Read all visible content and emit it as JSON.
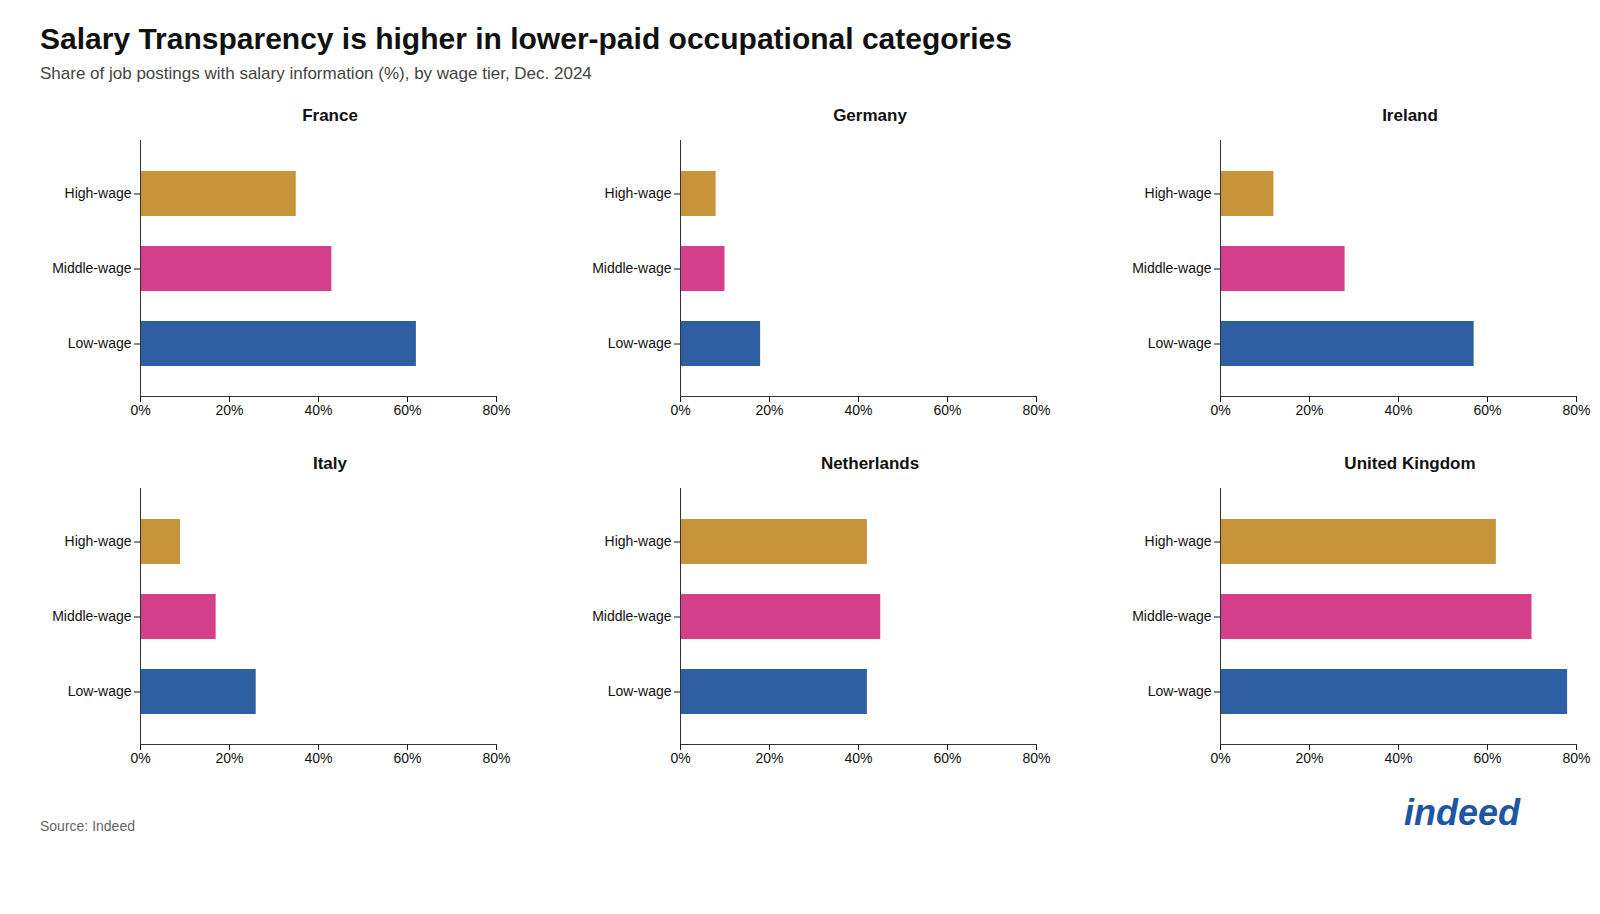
{
  "title": "Salary Transparency is higher in lower-paid occupational categories",
  "subtitle": "Share of job postings with salary information (%), by wage tier, Dec. 2024",
  "source": "Source: Indeed",
  "annotations": [
    "indeed"
  ],
  "chart_data": [
    {
      "type": "bar",
      "title": "France",
      "orientation": "horizontal",
      "categories": [
        "High-wage",
        "Middle-wage",
        "Low-wage"
      ],
      "values": [
        35,
        43,
        62
      ],
      "colors": [
        "#c8943a",
        "#d43f8c",
        "#2e5fa3"
      ],
      "xlim": [
        0,
        80
      ],
      "xticks": [
        {
          "value": 0,
          "label": "0%"
        },
        {
          "value": 20,
          "label": "20%"
        },
        {
          "value": 40,
          "label": "40%"
        },
        {
          "value": 60,
          "label": "60%"
        },
        {
          "value": 80,
          "label": "80%"
        }
      ],
      "grid": false
    },
    {
      "type": "bar",
      "title": "Germany",
      "orientation": "horizontal",
      "categories": [
        "High-wage",
        "Middle-wage",
        "Low-wage"
      ],
      "values": [
        8,
        10,
        18
      ],
      "colors": [
        "#c8943a",
        "#d43f8c",
        "#2e5fa3"
      ],
      "xlim": [
        0,
        80
      ],
      "xticks": [
        {
          "value": 0,
          "label": "0%"
        },
        {
          "value": 20,
          "label": "20%"
        },
        {
          "value": 40,
          "label": "40%"
        },
        {
          "value": 60,
          "label": "60%"
        },
        {
          "value": 80,
          "label": "80%"
        }
      ],
      "grid": false
    },
    {
      "type": "bar",
      "title": "Ireland",
      "orientation": "horizontal",
      "categories": [
        "High-wage",
        "Middle-wage",
        "Low-wage"
      ],
      "values": [
        12,
        28,
        57
      ],
      "colors": [
        "#c8943a",
        "#d43f8c",
        "#2e5fa3"
      ],
      "xlim": [
        0,
        80
      ],
      "xticks": [
        {
          "value": 0,
          "label": "0%"
        },
        {
          "value": 20,
          "label": "20%"
        },
        {
          "value": 40,
          "label": "40%"
        },
        {
          "value": 60,
          "label": "60%"
        },
        {
          "value": 80,
          "label": "80%"
        }
      ],
      "grid": false
    },
    {
      "type": "bar",
      "title": "Italy",
      "orientation": "horizontal",
      "categories": [
        "High-wage",
        "Middle-wage",
        "Low-wage"
      ],
      "values": [
        9,
        17,
        26
      ],
      "colors": [
        "#c8943a",
        "#d43f8c",
        "#2e5fa3"
      ],
      "xlim": [
        0,
        80
      ],
      "xticks": [
        {
          "value": 0,
          "label": "0%"
        },
        {
          "value": 20,
          "label": "20%"
        },
        {
          "value": 40,
          "label": "40%"
        },
        {
          "value": 60,
          "label": "60%"
        },
        {
          "value": 80,
          "label": "80%"
        }
      ],
      "grid": false
    },
    {
      "type": "bar",
      "title": "Netherlands",
      "orientation": "horizontal",
      "categories": [
        "High-wage",
        "Middle-wage",
        "Low-wage"
      ],
      "values": [
        42,
        45,
        42
      ],
      "colors": [
        "#c8943a",
        "#d43f8c",
        "#2e5fa3"
      ],
      "xlim": [
        0,
        80
      ],
      "xticks": [
        {
          "value": 0,
          "label": "0%"
        },
        {
          "value": 20,
          "label": "20%"
        },
        {
          "value": 40,
          "label": "40%"
        },
        {
          "value": 60,
          "label": "60%"
        },
        {
          "value": 80,
          "label": "80%"
        }
      ],
      "grid": false
    },
    {
      "type": "bar",
      "title": "United Kingdom",
      "orientation": "horizontal",
      "categories": [
        "High-wage",
        "Middle-wage",
        "Low-wage"
      ],
      "values": [
        62,
        70,
        78
      ],
      "colors": [
        "#c8943a",
        "#d43f8c",
        "#2e5fa3"
      ],
      "xlim": [
        0,
        80
      ],
      "xticks": [
        {
          "value": 0,
          "label": "0%"
        },
        {
          "value": 20,
          "label": "20%"
        },
        {
          "value": 40,
          "label": "40%"
        },
        {
          "value": 60,
          "label": "60%"
        },
        {
          "value": 80,
          "label": "80%"
        }
      ],
      "grid": false
    }
  ]
}
